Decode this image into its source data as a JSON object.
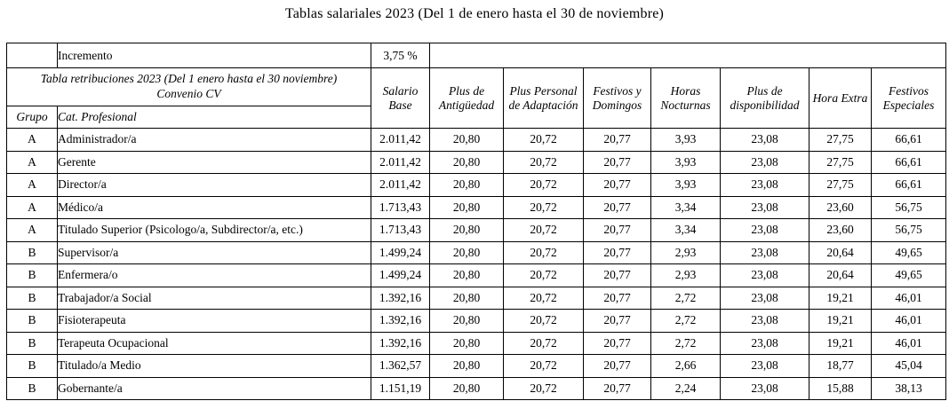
{
  "page": {
    "title": "Tablas salariales 2023 (Del 1 de enero hasta el 30 de noviembre)"
  },
  "table": {
    "increment_label": "Incremento",
    "increment_value": "3,75 %",
    "caption_line1": "Tabla retribuciones 2023 (Del 1 enero hasta el 30 noviembre)",
    "caption_line2": "Convenio CV",
    "group_header": "Grupo",
    "category_header": "Cat. Profesional",
    "columns": [
      "Salario Base",
      "Plus de Antigüedad",
      "Plus Personal de Adaptación",
      "Festivos y Domingos",
      "Horas Nocturnas",
      "Plus de disponibilidad",
      "Hora Extra",
      "Festivos Especiales"
    ],
    "rows": [
      {
        "grupo": "A",
        "categoria": "Administrador/a",
        "values": [
          "2.011,42",
          "20,80",
          "20,72",
          "20,77",
          "3,93",
          "23,08",
          "27,75",
          "66,61"
        ]
      },
      {
        "grupo": "A",
        "categoria": "Gerente",
        "values": [
          "2.011,42",
          "20,80",
          "20,72",
          "20,77",
          "3,93",
          "23,08",
          "27,75",
          "66,61"
        ]
      },
      {
        "grupo": "A",
        "categoria": "Director/a",
        "values": [
          "2.011,42",
          "20,80",
          "20,72",
          "20,77",
          "3,93",
          "23,08",
          "27,75",
          "66,61"
        ]
      },
      {
        "grupo": "A",
        "categoria": "Médico/a",
        "values": [
          "1.713,43",
          "20,80",
          "20,72",
          "20,77",
          "3,34",
          "23,08",
          "23,60",
          "56,75"
        ]
      },
      {
        "grupo": "A",
        "categoria": "Titulado Superior (Psicologo/a, Subdirector/a, etc.)",
        "values": [
          "1.713,43",
          "20,80",
          "20,72",
          "20,77",
          "3,34",
          "23,08",
          "23,60",
          "56,75"
        ]
      },
      {
        "grupo": "B",
        "categoria": "Supervisor/a",
        "values": [
          "1.499,24",
          "20,80",
          "20,72",
          "20,77",
          "2,93",
          "23,08",
          "20,64",
          "49,65"
        ]
      },
      {
        "grupo": "B",
        "categoria": "Enfermera/o",
        "values": [
          "1.499,24",
          "20,80",
          "20,72",
          "20,77",
          "2,93",
          "23,08",
          "20,64",
          "49,65"
        ]
      },
      {
        "grupo": "B",
        "categoria": "Trabajador/a Social",
        "values": [
          "1.392,16",
          "20,80",
          "20,72",
          "20,77",
          "2,72",
          "23,08",
          "19,21",
          "46,01"
        ]
      },
      {
        "grupo": "B",
        "categoria": "Fisioterapeuta",
        "values": [
          "1.392,16",
          "20,80",
          "20,72",
          "20,77",
          "2,72",
          "23,08",
          "19,21",
          "46,01"
        ]
      },
      {
        "grupo": "B",
        "categoria": "Terapeuta Ocupacional",
        "values": [
          "1.392,16",
          "20,80",
          "20,72",
          "20,77",
          "2,72",
          "23,08",
          "19,21",
          "46,01"
        ]
      },
      {
        "grupo": "B",
        "categoria": "Titulado/a Medio",
        "values": [
          "1.362,57",
          "20,80",
          "20,72",
          "20,77",
          "2,66",
          "23,08",
          "18,77",
          "45,04"
        ]
      },
      {
        "grupo": "B",
        "categoria": "Gobernante/a",
        "values": [
          "1.151,19",
          "20,80",
          "20,72",
          "20,77",
          "2,24",
          "23,08",
          "15,88",
          "38,13"
        ]
      }
    ]
  }
}
